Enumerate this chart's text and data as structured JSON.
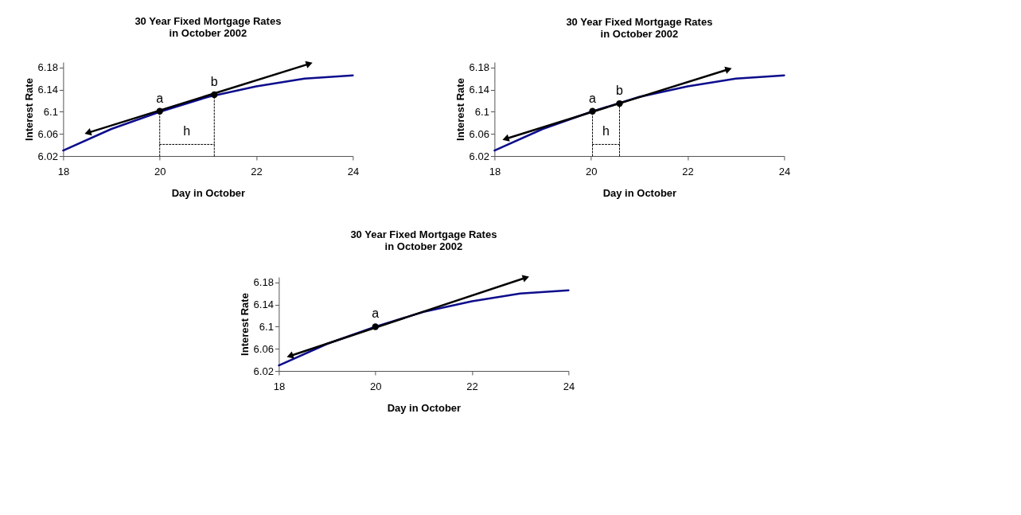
{
  "chart_data": [
    {
      "type": "line",
      "title": "30 Year Fixed Mortgage Rates\nin October 2002",
      "xlabel": "Day in October",
      "ylabel": "Interest Rate",
      "xlim": [
        18,
        24
      ],
      "xticks": [
        18,
        20,
        22,
        24
      ],
      "ylim": [
        6.02,
        6.19
      ],
      "yticks": [
        6.02,
        6.06,
        6.1,
        6.14,
        6.18
      ],
      "grid": false,
      "legend": false,
      "series": [
        {
          "type": "line",
          "color": "#0c0c8c",
          "x": [
            18,
            19,
            20,
            21,
            22,
            23,
            24
          ],
          "values": [
            6.03,
            6.069,
            6.1,
            6.127,
            6.146,
            6.16,
            6.166
          ]
        },
        {
          "type": "line",
          "color": "#000000",
          "line_style": "solid",
          "marker": "triangle",
          "x": [
            18.51,
            23.1
          ],
          "values": [
            6.062,
            6.187
          ]
        },
        {
          "type": "scatter",
          "color": "#000000",
          "marker": "circle",
          "x": [
            20,
            21.13
          ],
          "values": [
            6.101,
            6.131
          ]
        },
        {
          "type": "line",
          "color": "#000000",
          "line_style": "dotted",
          "x": [
            20,
            20
          ],
          "values": [
            6.02,
            6.101
          ]
        },
        {
          "type": "line",
          "color": "#000000",
          "line_style": "dotted",
          "x": [
            21.13,
            21.13
          ],
          "values": [
            6.02,
            6.131
          ]
        },
        {
          "type": "line",
          "color": "#000000",
          "line_style": "dotted",
          "x": [
            20,
            21.13
          ],
          "values": [
            6.041,
            6.041
          ]
        }
      ],
      "annotations": [
        {
          "text": "a",
          "x": 20,
          "y": 6.101
        },
        {
          "text": "b",
          "x": 21.13,
          "y": 6.131
        },
        {
          "text": "h",
          "x": 20.56,
          "y": 6.041
        }
      ]
    },
    {
      "type": "line",
      "title": "30 Year Fixed Mortgage Rates\nin October 2002",
      "xlabel": "Day in October",
      "ylabel": "Interest Rate",
      "xlim": [
        18,
        24
      ],
      "xticks": [
        18,
        20,
        22,
        24
      ],
      "ylim": [
        6.02,
        6.19
      ],
      "yticks": [
        6.02,
        6.06,
        6.1,
        6.14,
        6.18
      ],
      "grid": false,
      "legend": false,
      "series": [
        {
          "type": "line",
          "color": "#0c0c8c",
          "x": [
            18,
            19,
            20,
            21,
            22,
            23,
            24
          ],
          "values": [
            6.03,
            6.069,
            6.1,
            6.127,
            6.146,
            6.16,
            6.166
          ]
        },
        {
          "type": "line",
          "color": "#000000",
          "line_style": "solid",
          "marker": "triangle",
          "x": [
            18.23,
            22.85
          ],
          "values": [
            6.051,
            6.177
          ]
        },
        {
          "type": "scatter",
          "color": "#000000",
          "marker": "circle",
          "x": [
            20.03,
            20.59
          ],
          "values": [
            6.101,
            6.115
          ]
        },
        {
          "type": "line",
          "color": "#000000",
          "line_style": "dotted",
          "x": [
            20.03,
            20.03
          ],
          "values": [
            6.02,
            6.101
          ]
        },
        {
          "type": "line",
          "color": "#000000",
          "line_style": "dotted",
          "x": [
            20.59,
            20.59
          ],
          "values": [
            6.02,
            6.115
          ]
        },
        {
          "type": "line",
          "color": "#000000",
          "line_style": "dotted",
          "x": [
            20.03,
            20.59
          ],
          "values": [
            6.041,
            6.041
          ]
        }
      ],
      "annotations": [
        {
          "text": "a",
          "x": 20.03,
          "y": 6.101
        },
        {
          "text": "b",
          "x": 20.59,
          "y": 6.115
        },
        {
          "text": "h",
          "x": 20.31,
          "y": 6.041
        }
      ]
    },
    {
      "type": "line",
      "title": "30 Year Fixed Mortgage Rates\nin October 2002",
      "xlabel": "Day in October",
      "ylabel": "Interest Rate",
      "xlim": [
        18,
        24
      ],
      "xticks": [
        18,
        20,
        22,
        24
      ],
      "ylim": [
        6.02,
        6.19
      ],
      "yticks": [
        6.02,
        6.06,
        6.1,
        6.14,
        6.18
      ],
      "grid": false,
      "legend": false,
      "series": [
        {
          "type": "line",
          "color": "#0c0c8c",
          "x": [
            18,
            19,
            20,
            21,
            22,
            23,
            24
          ],
          "values": [
            6.03,
            6.069,
            6.1,
            6.127,
            6.146,
            6.16,
            6.166
          ]
        },
        {
          "type": "line",
          "color": "#000000",
          "line_style": "solid",
          "marker": "triangle",
          "x": [
            18.23,
            23.12
          ],
          "values": [
            6.047,
            6.189
          ]
        },
        {
          "type": "scatter",
          "color": "#000000",
          "marker": "circle",
          "x": [
            20
          ],
          "values": [
            6.1
          ]
        }
      ],
      "annotations": [
        {
          "text": "a",
          "x": 20,
          "y": 6.1
        }
      ]
    }
  ]
}
